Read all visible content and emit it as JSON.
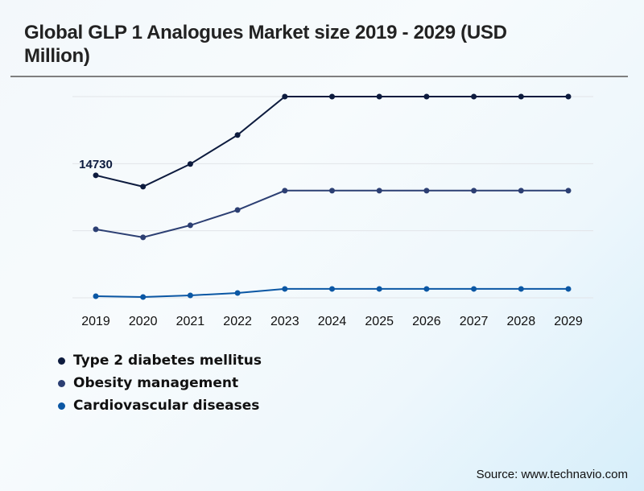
{
  "header": {
    "title": "Global GLP 1 Analogues Market size 2019 - 2029 (USD Million)"
  },
  "footer": {
    "source": "Source: www.technavio.com"
  },
  "chart_data": {
    "type": "line",
    "title": "Global GLP 1 Analogues Market size 2019 - 2029 (USD Million)",
    "xlabel": "",
    "ylabel": "",
    "x": [
      "2019",
      "2020",
      "2021",
      "2022",
      "2023",
      "2024",
      "2025",
      "2026",
      "2027",
      "2028",
      "2029"
    ],
    "ylim": [
      0,
      24200
    ],
    "grid": true,
    "legend_position": "bottom-left",
    "series": [
      {
        "name": "Type 2 diabetes mellitus",
        "color": "#0d1b3e",
        "values": [
          14730,
          13370,
          16090,
          19580,
          24200,
          24200,
          24200,
          24200,
          24200,
          24200,
          24200
        ]
      },
      {
        "name": "Obesity management",
        "color": "#2c3f73",
        "values": [
          8240,
          7270,
          8720,
          10560,
          12890,
          12890,
          12890,
          12890,
          12890,
          12890,
          12890
        ]
      },
      {
        "name": "Cardiovascular diseases",
        "color": "#0b57a4",
        "values": [
          190,
          100,
          290,
          580,
          1070,
          1070,
          1070,
          1070,
          1070,
          1070,
          1070
        ]
      }
    ],
    "annotations": [
      {
        "series": 0,
        "x": "2019",
        "text": "14730"
      }
    ]
  }
}
